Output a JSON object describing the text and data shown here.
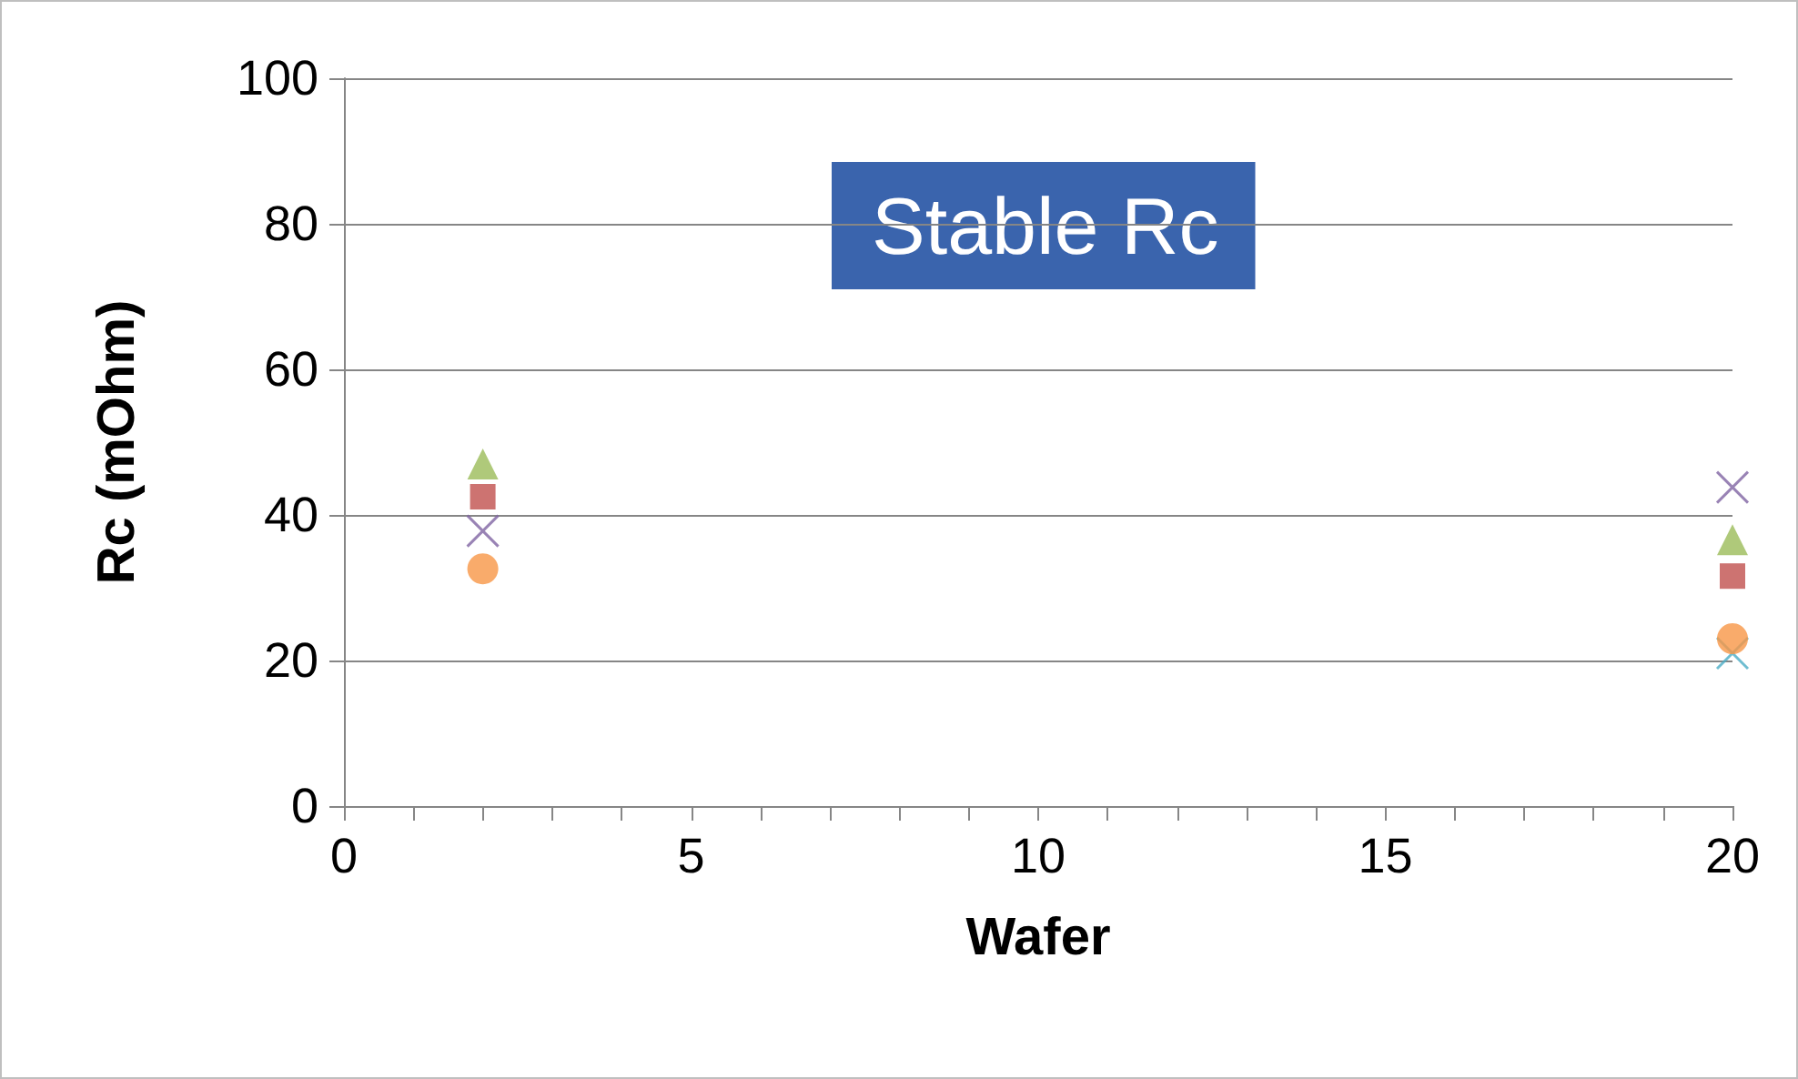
{
  "chart_data": {
    "type": "scatter",
    "xlabel": "Wafer",
    "ylabel": "Rc (mOhm)",
    "annotations": [
      "Stable Rc"
    ],
    "x": [
      2,
      20
    ],
    "series": [
      {
        "color": "#c0504d",
        "marker": "square",
        "values": [
          42.5,
          31.6
        ]
      },
      {
        "color": "#9bbb59",
        "marker": "triangle",
        "values": [
          47,
          36.6
        ]
      },
      {
        "color": "#8064a2",
        "marker": "cross",
        "values": [
          37.8,
          43.8
        ]
      },
      {
        "color": "#4bacc6",
        "marker": "cross",
        "values": [
          null,
          21
        ]
      },
      {
        "color": "#f79646",
        "marker": "circle",
        "values": [
          32.6,
          23
        ]
      }
    ],
    "xlim": [
      0,
      20
    ],
    "xticks": [
      0,
      5,
      10,
      15,
      20
    ],
    "ylim": [
      0,
      100
    ],
    "yticks": [
      0,
      20,
      40,
      60,
      80,
      100
    ],
    "grid": "y"
  }
}
